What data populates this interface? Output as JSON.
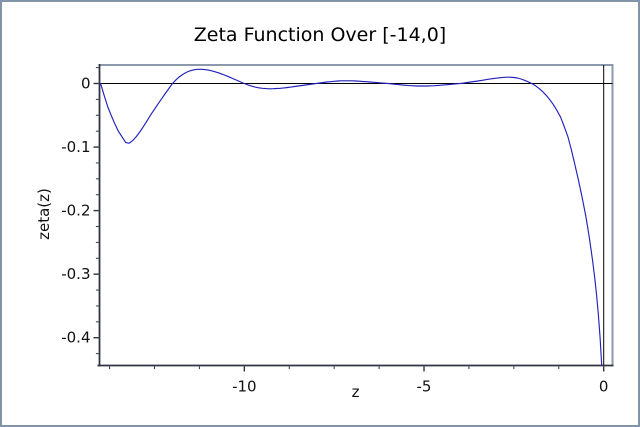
{
  "window": {
    "background": "#ffffff",
    "border_color": "#8494a8"
  },
  "chart_data": {
    "type": "line",
    "title": "Zeta Function Over [-14,0]",
    "xlabel": "z",
    "ylabel": "zeta(z)",
    "xlim": [
      -14.03,
      0.245
    ],
    "ylim": [
      -0.4437,
      0.0291
    ],
    "grid": false,
    "legend_position": "none",
    "x_major_ticks": {
      "values": [
        -10,
        -5,
        0
      ],
      "labels": [
        "-10",
        "-5",
        "0"
      ]
    },
    "x_minor_ticks": [
      -13.75,
      -12.5,
      -11.25,
      -8.75,
      -7.5,
      -6.25,
      -3.75,
      -2.5,
      -1.25
    ],
    "y_major_ticks": {
      "values": [
        0,
        -0.1,
        -0.2,
        -0.3,
        -0.4
      ],
      "labels": [
        "0",
        "-0.1",
        "-0.2",
        "-0.3",
        "-0.4"
      ]
    },
    "y_minor_ticks": [
      0.025,
      -0.025,
      -0.05,
      -0.075,
      -0.125,
      -0.15,
      -0.175,
      -0.225,
      -0.25,
      -0.275,
      -0.325,
      -0.35,
      -0.375,
      -0.425
    ],
    "zero_axis_lines": {
      "horizontal_at_y0": true,
      "vertical_at_x0": true
    },
    "colors": {
      "line": "#2222bb",
      "spine_dark": "#2e3440",
      "frame_light": "#8c99ac",
      "axis_line": "#000000",
      "text": "#111111"
    },
    "series": [
      {
        "name": "zeta(z)",
        "points": [
          [
            -14.0,
            0.0
          ],
          [
            -13.9,
            -0.019
          ],
          [
            -13.8,
            -0.037
          ],
          [
            -13.7,
            -0.051
          ],
          [
            -13.6,
            -0.064
          ],
          [
            -13.5,
            -0.0755
          ],
          [
            -13.4,
            -0.084
          ],
          [
            -13.3,
            -0.093
          ],
          [
            -13.2,
            -0.094
          ],
          [
            -13.1,
            -0.0895
          ],
          [
            -13.0,
            -0.0833
          ],
          [
            -12.9,
            -0.0755
          ],
          [
            -12.8,
            -0.067
          ],
          [
            -12.7,
            -0.058
          ],
          [
            -12.6,
            -0.049
          ],
          [
            -12.5,
            -0.0405
          ],
          [
            -12.4,
            -0.032
          ],
          [
            -12.3,
            -0.024
          ],
          [
            -12.2,
            -0.0158
          ],
          [
            -12.1,
            -0.0078
          ],
          [
            -12.0,
            0.0
          ],
          [
            -11.9,
            0.0058
          ],
          [
            -11.8,
            0.0108
          ],
          [
            -11.7,
            0.0148
          ],
          [
            -11.6,
            0.018
          ],
          [
            -11.5,
            0.0202
          ],
          [
            -11.4,
            0.0216
          ],
          [
            -11.3,
            0.0223
          ],
          [
            -11.2,
            0.0224
          ],
          [
            -11.1,
            0.0219
          ],
          [
            -11.0,
            0.0211
          ],
          [
            -10.9,
            0.0198
          ],
          [
            -10.8,
            0.0182
          ],
          [
            -10.7,
            0.0164
          ],
          [
            -10.6,
            0.0143
          ],
          [
            -10.5,
            0.0121
          ],
          [
            -10.4,
            0.0097
          ],
          [
            -10.3,
            0.0073
          ],
          [
            -10.2,
            0.0048
          ],
          [
            -10.1,
            0.0024
          ],
          [
            -10.0,
            0.0
          ],
          [
            -9.9,
            -0.0022
          ],
          [
            -9.8,
            -0.0041
          ],
          [
            -9.7,
            -0.0057
          ],
          [
            -9.6,
            -0.0068
          ],
          [
            -9.5,
            -0.0076
          ],
          [
            -9.4,
            -0.0081
          ],
          [
            -9.3,
            -0.0083
          ],
          [
            -9.2,
            -0.0082
          ],
          [
            -9.1,
            -0.0079
          ],
          [
            -9.0,
            -0.0076
          ],
          [
            -8.9,
            -0.007
          ],
          [
            -8.8,
            -0.0063
          ],
          [
            -8.7,
            -0.0056
          ],
          [
            -8.6,
            -0.0048
          ],
          [
            -8.5,
            -0.004
          ],
          [
            -8.4,
            -0.0032
          ],
          [
            -8.3,
            -0.0024
          ],
          [
            -8.2,
            -0.0016
          ],
          [
            -8.1,
            -0.0008
          ],
          [
            -8.0,
            0.0
          ],
          [
            -7.9,
            0.0008
          ],
          [
            -7.8,
            0.0016
          ],
          [
            -7.7,
            0.0023
          ],
          [
            -7.6,
            0.0029
          ],
          [
            -7.5,
            0.0035
          ],
          [
            -7.4,
            0.0039
          ],
          [
            -7.3,
            0.0042
          ],
          [
            -7.2,
            0.0043
          ],
          [
            -7.1,
            0.0043
          ],
          [
            -7.0,
            0.0042
          ],
          [
            -6.9,
            0.0039
          ],
          [
            -6.8,
            0.0036
          ],
          [
            -6.7,
            0.0032
          ],
          [
            -6.6,
            0.0028
          ],
          [
            -6.5,
            0.0024
          ],
          [
            -6.4,
            0.0019
          ],
          [
            -6.3,
            0.0014
          ],
          [
            -6.2,
            0.0009
          ],
          [
            -6.1,
            0.0005
          ],
          [
            -6.0,
            0.0
          ],
          [
            -5.9,
            -0.0006
          ],
          [
            -5.8,
            -0.0012
          ],
          [
            -5.7,
            -0.0018
          ],
          [
            -5.6,
            -0.0024
          ],
          [
            -5.5,
            -0.0029
          ],
          [
            -5.4,
            -0.0033
          ],
          [
            -5.3,
            -0.0037
          ],
          [
            -5.2,
            -0.0039
          ],
          [
            -5.1,
            -0.004
          ],
          [
            -5.0,
            -0.004
          ],
          [
            -4.9,
            -0.0039
          ],
          [
            -4.8,
            -0.0037
          ],
          [
            -4.7,
            -0.0034
          ],
          [
            -4.6,
            -0.003
          ],
          [
            -4.5,
            -0.0026
          ],
          [
            -4.4,
            -0.0021
          ],
          [
            -4.3,
            -0.0016
          ],
          [
            -4.2,
            -0.0011
          ],
          [
            -4.1,
            -0.0005
          ],
          [
            -4.0,
            0.0
          ],
          [
            -3.9,
            0.0007
          ],
          [
            -3.8,
            0.0015
          ],
          [
            -3.7,
            0.0023
          ],
          [
            -3.6,
            0.0031
          ],
          [
            -3.5,
            0.004
          ],
          [
            -3.4,
            0.0049
          ],
          [
            -3.3,
            0.0058
          ],
          [
            -3.2,
            0.0067
          ],
          [
            -3.1,
            0.0075
          ],
          [
            -3.0,
            0.0083
          ],
          [
            -2.9,
            0.009
          ],
          [
            -2.8,
            0.0096
          ],
          [
            -2.7,
            0.0099
          ],
          [
            -2.6,
            0.0099
          ],
          [
            -2.5,
            0.0095
          ],
          [
            -2.4,
            0.0086
          ],
          [
            -2.3,
            0.0071
          ],
          [
            -2.2,
            0.0051
          ],
          [
            -2.1,
            0.0027
          ],
          [
            -2.0,
            0.0
          ],
          [
            -1.9,
            -0.0034
          ],
          [
            -1.8,
            -0.0077
          ],
          [
            -1.7,
            -0.0127
          ],
          [
            -1.6,
            -0.0186
          ],
          [
            -1.5,
            -0.0255
          ],
          [
            -1.4,
            -0.0334
          ],
          [
            -1.3,
            -0.0426
          ],
          [
            -1.2,
            -0.0531
          ],
          [
            -1.1,
            -0.0676
          ],
          [
            -1.0,
            -0.0833
          ],
          [
            -0.9,
            -0.1045
          ],
          [
            -0.8,
            -0.1278
          ],
          [
            -0.7,
            -0.1525
          ],
          [
            -0.6,
            -0.179
          ],
          [
            -0.5,
            -0.2079
          ],
          [
            -0.45,
            -0.2245
          ],
          [
            -0.4,
            -0.2425
          ],
          [
            -0.35,
            -0.2618
          ],
          [
            -0.3,
            -0.2825
          ],
          [
            -0.25,
            -0.3055
          ],
          [
            -0.2,
            -0.3315
          ],
          [
            -0.15,
            -0.3625
          ],
          [
            -0.1,
            -0.4
          ],
          [
            -0.05,
            -0.4485
          ],
          [
            0.0,
            -0.5
          ]
        ]
      }
    ]
  }
}
